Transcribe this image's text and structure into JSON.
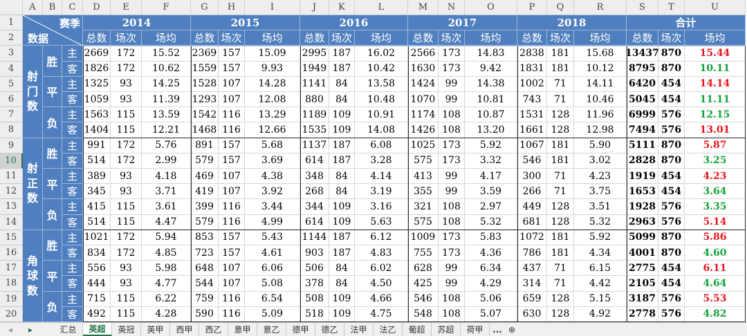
{
  "sheet": {
    "column_letters": [
      "A",
      "B",
      "C",
      "D",
      "E",
      "F",
      "G",
      "H",
      "I",
      "J",
      "K",
      "L",
      "M",
      "N",
      "O",
      "P",
      "Q",
      "R",
      "S",
      "T",
      "U"
    ],
    "row_numbers": [
      1,
      2,
      3,
      4,
      5,
      6,
      7,
      8,
      9,
      10,
      11,
      12,
      13,
      14,
      15,
      16,
      17,
      18,
      19,
      20
    ],
    "selected_row": 10,
    "corner": {
      "top": "赛季",
      "bottom": "数据"
    },
    "seasons": [
      "2014",
      "2015",
      "2016",
      "2017",
      "2018",
      "合计"
    ],
    "subheaders": [
      "总数",
      "场次",
      "场均"
    ],
    "header_color": "#4f7fbf",
    "groups": [
      {
        "label": "射门数",
        "results": [
          {
            "label": "胜",
            "rows": [
              {
                "side": "主",
                "cells": [
                  "2669",
                  "172",
                  "15.52",
                  "2369",
                  "157",
                  "15.09",
                  "2995",
                  "187",
                  "16.02",
                  "2566",
                  "173",
                  "14.83",
                  "2838",
                  "181",
                  "15.68",
                  "13437",
                  "870",
                  "15.44"
                ],
                "avg_color": "#e8141c"
              },
              {
                "side": "客",
                "cells": [
                  "1826",
                  "172",
                  "10.62",
                  "1559",
                  "157",
                  "9.93",
                  "1949",
                  "187",
                  "10.42",
                  "1630",
                  "173",
                  "9.42",
                  "1831",
                  "181",
                  "10.12",
                  "8795",
                  "870",
                  "10.11"
                ],
                "avg_color": "#12a33a"
              }
            ]
          },
          {
            "label": "平",
            "rows": [
              {
                "side": "主",
                "cells": [
                  "1325",
                  "93",
                  "14.25",
                  "1528",
                  "107",
                  "14.28",
                  "1141",
                  "84",
                  "13.58",
                  "1424",
                  "99",
                  "14.38",
                  "1002",
                  "71",
                  "14.11",
                  "6420",
                  "454",
                  "14.14"
                ],
                "avg_color": "#e8141c"
              },
              {
                "side": "客",
                "cells": [
                  "1059",
                  "93",
                  "11.39",
                  "1293",
                  "107",
                  "12.08",
                  "880",
                  "84",
                  "10.48",
                  "1070",
                  "99",
                  "10.81",
                  "743",
                  "71",
                  "10.46",
                  "5045",
                  "454",
                  "11.11"
                ],
                "avg_color": "#12a33a"
              }
            ]
          },
          {
            "label": "负",
            "rows": [
              {
                "side": "主",
                "cells": [
                  "1563",
                  "115",
                  "13.59",
                  "1542",
                  "116",
                  "13.29",
                  "1189",
                  "109",
                  "10.91",
                  "1174",
                  "108",
                  "10.87",
                  "1531",
                  "128",
                  "11.96",
                  "6999",
                  "576",
                  "12.15"
                ],
                "avg_color": "#12a33a"
              },
              {
                "side": "客",
                "cells": [
                  "1404",
                  "115",
                  "12.21",
                  "1468",
                  "116",
                  "12.66",
                  "1535",
                  "109",
                  "14.08",
                  "1426",
                  "108",
                  "13.20",
                  "1661",
                  "128",
                  "12.98",
                  "7494",
                  "576",
                  "13.01"
                ],
                "avg_color": "#e8141c"
              }
            ]
          }
        ]
      },
      {
        "label": "射正数",
        "results": [
          {
            "label": "胜",
            "rows": [
              {
                "side": "主",
                "cells": [
                  "991",
                  "172",
                  "5.76",
                  "891",
                  "157",
                  "5.68",
                  "1137",
                  "187",
                  "6.08",
                  "1025",
                  "173",
                  "5.92",
                  "1067",
                  "181",
                  "5.90",
                  "5111",
                  "870",
                  "5.87"
                ],
                "avg_color": "#e8141c"
              },
              {
                "side": "客",
                "cells": [
                  "514",
                  "172",
                  "2.99",
                  "579",
                  "157",
                  "3.69",
                  "614",
                  "187",
                  "3.28",
                  "575",
                  "173",
                  "3.32",
                  "546",
                  "181",
                  "3.02",
                  "2828",
                  "870",
                  "3.25"
                ],
                "avg_color": "#12a33a"
              }
            ]
          },
          {
            "label": "平",
            "rows": [
              {
                "side": "主",
                "cells": [
                  "389",
                  "93",
                  "4.18",
                  "469",
                  "107",
                  "4.38",
                  "348",
                  "84",
                  "4.14",
                  "413",
                  "99",
                  "4.17",
                  "300",
                  "71",
                  "4.23",
                  "1919",
                  "454",
                  "4.23"
                ],
                "avg_color": "#e8141c"
              },
              {
                "side": "客",
                "cells": [
                  "345",
                  "93",
                  "3.71",
                  "419",
                  "107",
                  "3.92",
                  "268",
                  "84",
                  "3.19",
                  "355",
                  "99",
                  "3.59",
                  "266",
                  "71",
                  "3.75",
                  "1653",
                  "454",
                  "3.64"
                ],
                "avg_color": "#12a33a"
              }
            ]
          },
          {
            "label": "负",
            "rows": [
              {
                "side": "主",
                "cells": [
                  "415",
                  "115",
                  "3.61",
                  "399",
                  "116",
                  "3.44",
                  "344",
                  "109",
                  "3.16",
                  "321",
                  "108",
                  "2.97",
                  "449",
                  "128",
                  "3.51",
                  "1928",
                  "576",
                  "3.35"
                ],
                "avg_color": "#12a33a"
              },
              {
                "side": "客",
                "cells": [
                  "514",
                  "115",
                  "4.47",
                  "579",
                  "116",
                  "4.99",
                  "614",
                  "109",
                  "5.63",
                  "575",
                  "108",
                  "5.32",
                  "681",
                  "128",
                  "5.32",
                  "2963",
                  "576",
                  "5.14"
                ],
                "avg_color": "#e8141c"
              }
            ]
          }
        ]
      },
      {
        "label": "角球数",
        "results": [
          {
            "label": "胜",
            "rows": [
              {
                "side": "主",
                "cells": [
                  "1021",
                  "172",
                  "5.94",
                  "853",
                  "157",
                  "5.43",
                  "1144",
                  "187",
                  "6.12",
                  "1009",
                  "173",
                  "5.83",
                  "1072",
                  "181",
                  "5.92",
                  "5099",
                  "870",
                  "5.86"
                ],
                "avg_color": "#e8141c"
              },
              {
                "side": "客",
                "cells": [
                  "834",
                  "172",
                  "4.85",
                  "723",
                  "157",
                  "4.61",
                  "903",
                  "187",
                  "4.83",
                  "755",
                  "173",
                  "4.36",
                  "786",
                  "181",
                  "4.34",
                  "4001",
                  "870",
                  "4.60"
                ],
                "avg_color": "#12a33a"
              }
            ]
          },
          {
            "label": "平",
            "rows": [
              {
                "side": "主",
                "cells": [
                  "556",
                  "93",
                  "5.98",
                  "648",
                  "107",
                  "6.06",
                  "506",
                  "84",
                  "6.02",
                  "628",
                  "99",
                  "6.34",
                  "437",
                  "71",
                  "6.15",
                  "2775",
                  "454",
                  "6.11"
                ],
                "avg_color": "#e8141c"
              },
              {
                "side": "客",
                "cells": [
                  "444",
                  "93",
                  "4.77",
                  "544",
                  "107",
                  "5.08",
                  "378",
                  "84",
                  "4.50",
                  "425",
                  "99",
                  "4.29",
                  "314",
                  "71",
                  "4.42",
                  "2105",
                  "454",
                  "4.64"
                ],
                "avg_color": "#12a33a"
              }
            ]
          },
          {
            "label": "负",
            "rows": [
              {
                "side": "主",
                "cells": [
                  "715",
                  "115",
                  "6.22",
                  "759",
                  "116",
                  "6.54",
                  "508",
                  "109",
                  "4.66",
                  "546",
                  "108",
                  "5.06",
                  "659",
                  "128",
                  "5.15",
                  "3187",
                  "576",
                  "5.53"
                ],
                "avg_color": "#e8141c"
              },
              {
                "side": "客",
                "cells": [
                  "492",
                  "115",
                  "4.28",
                  "590",
                  "116",
                  "5.09",
                  "518",
                  "109",
                  "4.75",
                  "548",
                  "108",
                  "5.07",
                  "630",
                  "128",
                  "4.92",
                  "2778",
                  "576",
                  "4.82"
                ],
                "avg_color": "#12a33a"
              }
            ]
          }
        ]
      }
    ]
  },
  "tabs": [
    "汇总",
    "英超",
    "英冠",
    "英甲",
    "西甲",
    "西乙",
    "意甲",
    "意乙",
    "德甲",
    "德乙",
    "法甲",
    "法乙",
    "葡超",
    "苏超",
    "荷甲"
  ],
  "active_tab": 1,
  "tab_overflow": "..."
}
